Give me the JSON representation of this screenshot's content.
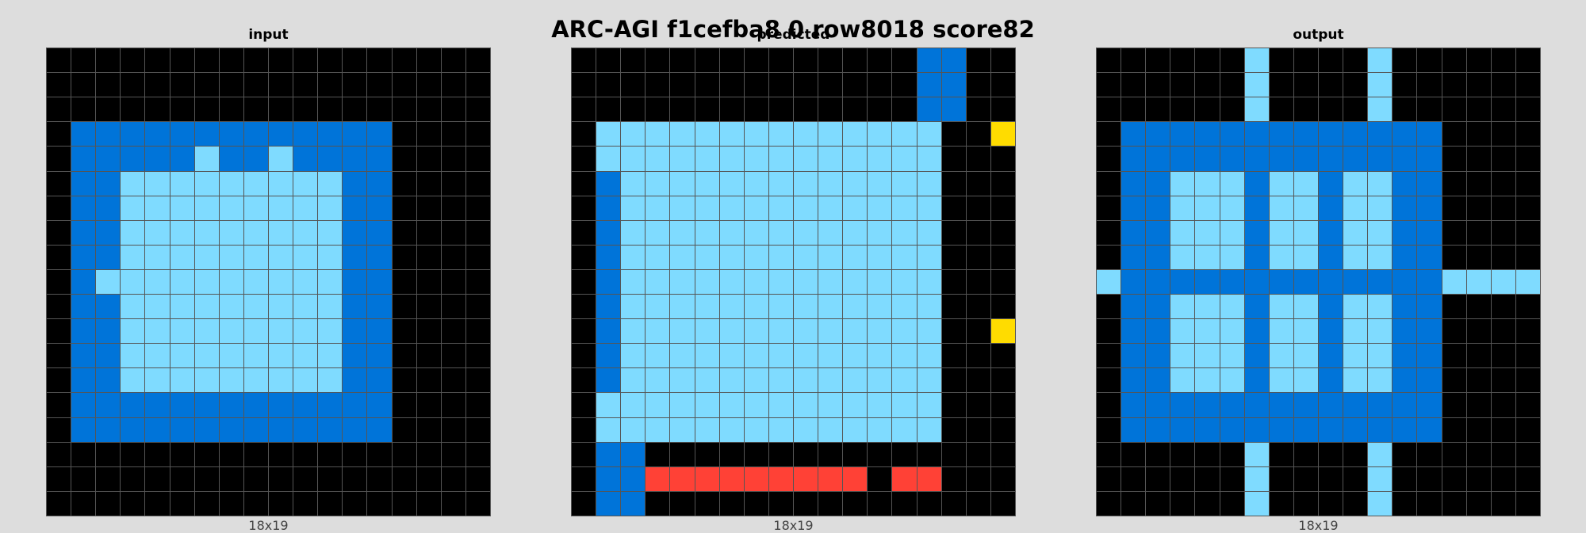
{
  "title": "ARC-AGI f1cefba8 0 row8018 score82",
  "palette": {
    "0": "#000000",
    "1": "#0074D9",
    "2": "#7FDBFF",
    "3": "#FFDC00",
    "4": "#FF4136"
  },
  "panels": [
    {
      "id": "input",
      "title": "input",
      "caption": "18x19",
      "grid": [
        "000000000000000000",
        "000000000000000000",
        "000000000000000000",
        "011111111111110000",
        "011111211211110000",
        "011222222222110000",
        "011222222222110000",
        "011222222222110000",
        "011222222222110000",
        "012222222222110000",
        "011222222222110000",
        "011222222222110000",
        "011222222222110000",
        "011222222222110000",
        "011111111111110000",
        "011111111111110000",
        "000000000000000000",
        "000000000000000000",
        "000000000000000000"
      ]
    },
    {
      "id": "predicted",
      "title": "predicted",
      "caption": "18x19",
      "grid": [
        "000000000000001100",
        "000000000000001100",
        "000000000000001100",
        "022222222222222003",
        "022222222222222000",
        "012222222222222000",
        "012222222222222000",
        "012222222222222000",
        "012222222222222000",
        "012222222222222000",
        "012222222222222000",
        "012222222222222003",
        "012222222222222000",
        "012222222222222000",
        "022222222222222000",
        "022222222222222000",
        "011000000000000000",
        "011444444444044000",
        "011000000000000000"
      ]
    },
    {
      "id": "output",
      "title": "output",
      "caption": "18x19",
      "grid": [
        "000000200002000000",
        "000000200002000000",
        "000000200002000000",
        "011111111111110000",
        "011111111111110000",
        "011222122122110000",
        "011222122122110000",
        "011222122122110000",
        "011222122122110000",
        "211111111111112222",
        "011222122122110000",
        "011222122122110000",
        "011222122122110000",
        "011222122122110000",
        "011111111111110000",
        "011111111111110000",
        "000000200002000000",
        "000000200002000000",
        "000000200002000000"
      ]
    }
  ]
}
